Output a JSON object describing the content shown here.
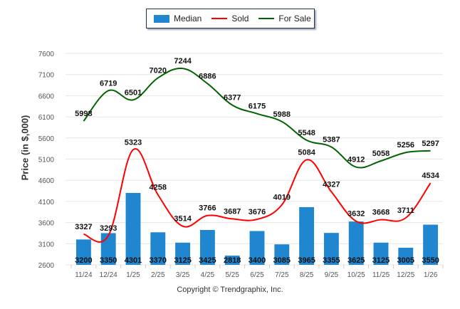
{
  "legend": {
    "median": "Median",
    "sold": "Sold",
    "for_sale": "For Sale"
  },
  "footer": {
    "copyright": "Copyright © Trendgraphix, Inc."
  },
  "colors": {
    "median": "#1f86cf",
    "sold": "#ff0000",
    "for_sale": "#006400",
    "grid": "#e6e6e6"
  },
  "chart_data": {
    "type": "bar",
    "title": "",
    "xlabel": "",
    "ylabel": "Price (in $,000)",
    "ylim": [
      2600,
      7600
    ],
    "yticks": [
      2600,
      3100,
      3600,
      4100,
      4600,
      5100,
      5600,
      6100,
      6600,
      7100,
      7600
    ],
    "grid": true,
    "legend_position": "top-center",
    "categories": [
      "11/24",
      "12/24",
      "1/25",
      "2/25",
      "3/25",
      "4/25",
      "5/25",
      "6/25",
      "7/25",
      "8/25",
      "9/25",
      "10/25",
      "11/25",
      "12/25",
      "1/26"
    ],
    "series": [
      {
        "name": "Median",
        "type": "bar",
        "values": [
          3200,
          3350,
          4301,
          3370,
          3125,
          3425,
          2818,
          3400,
          3085,
          3965,
          3355,
          3625,
          3125,
          3005,
          3550
        ]
      },
      {
        "name": "Sold",
        "type": "line",
        "values": [
          3327,
          3293,
          5323,
          4258,
          3514,
          3766,
          3687,
          3676,
          4019,
          5084,
          4327,
          3632,
          3668,
          3711,
          4534
        ]
      },
      {
        "name": "For Sale",
        "type": "line",
        "values": [
          5998,
          6719,
          6501,
          7020,
          7244,
          6886,
          6377,
          6175,
          5988,
          5548,
          5387,
          4912,
          5058,
          5256,
          5297
        ]
      }
    ]
  }
}
